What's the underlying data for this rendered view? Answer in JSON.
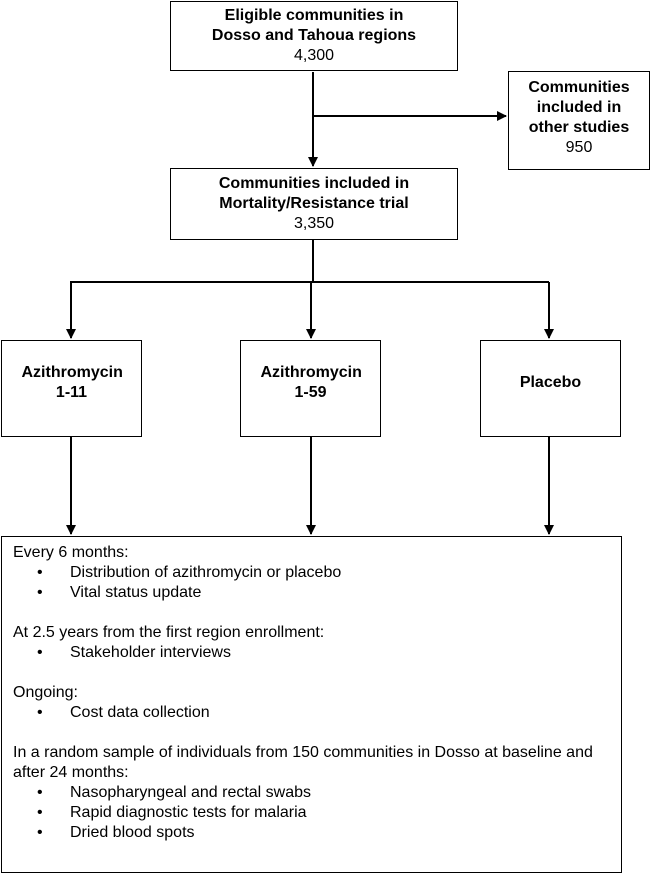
{
  "top_box": {
    "title": "Eligible communities in Dosso and Tahoua regions",
    "count": "4,300"
  },
  "other_studies_box": {
    "title": "Communities included in other studies",
    "count": "950"
  },
  "trial_box": {
    "title": "Communities included in Mortality/Resistance trial",
    "count": "3,350"
  },
  "arms": [
    {
      "label": "Azithromycin 1-11"
    },
    {
      "label": "Azithromycin 1-59"
    },
    {
      "label": "Placebo"
    }
  ],
  "activities": {
    "sections": [
      {
        "heading": "Every 6 months:",
        "items": [
          "Distribution of azithromycin or placebo",
          "Vital status update"
        ]
      },
      {
        "heading": "At 2.5 years from the first region enrollment:",
        "items": [
          "Stakeholder interviews"
        ]
      },
      {
        "heading": "Ongoing:",
        "items": [
          "Cost data collection"
        ]
      },
      {
        "heading": "In a random sample of individuals from 150 communities in Dosso at baseline and after 24 months:",
        "items": [
          "Nasopharyngeal and rectal swabs",
          "Rapid diagnostic tests for malaria",
          "Dried blood spots"
        ]
      }
    ]
  }
}
